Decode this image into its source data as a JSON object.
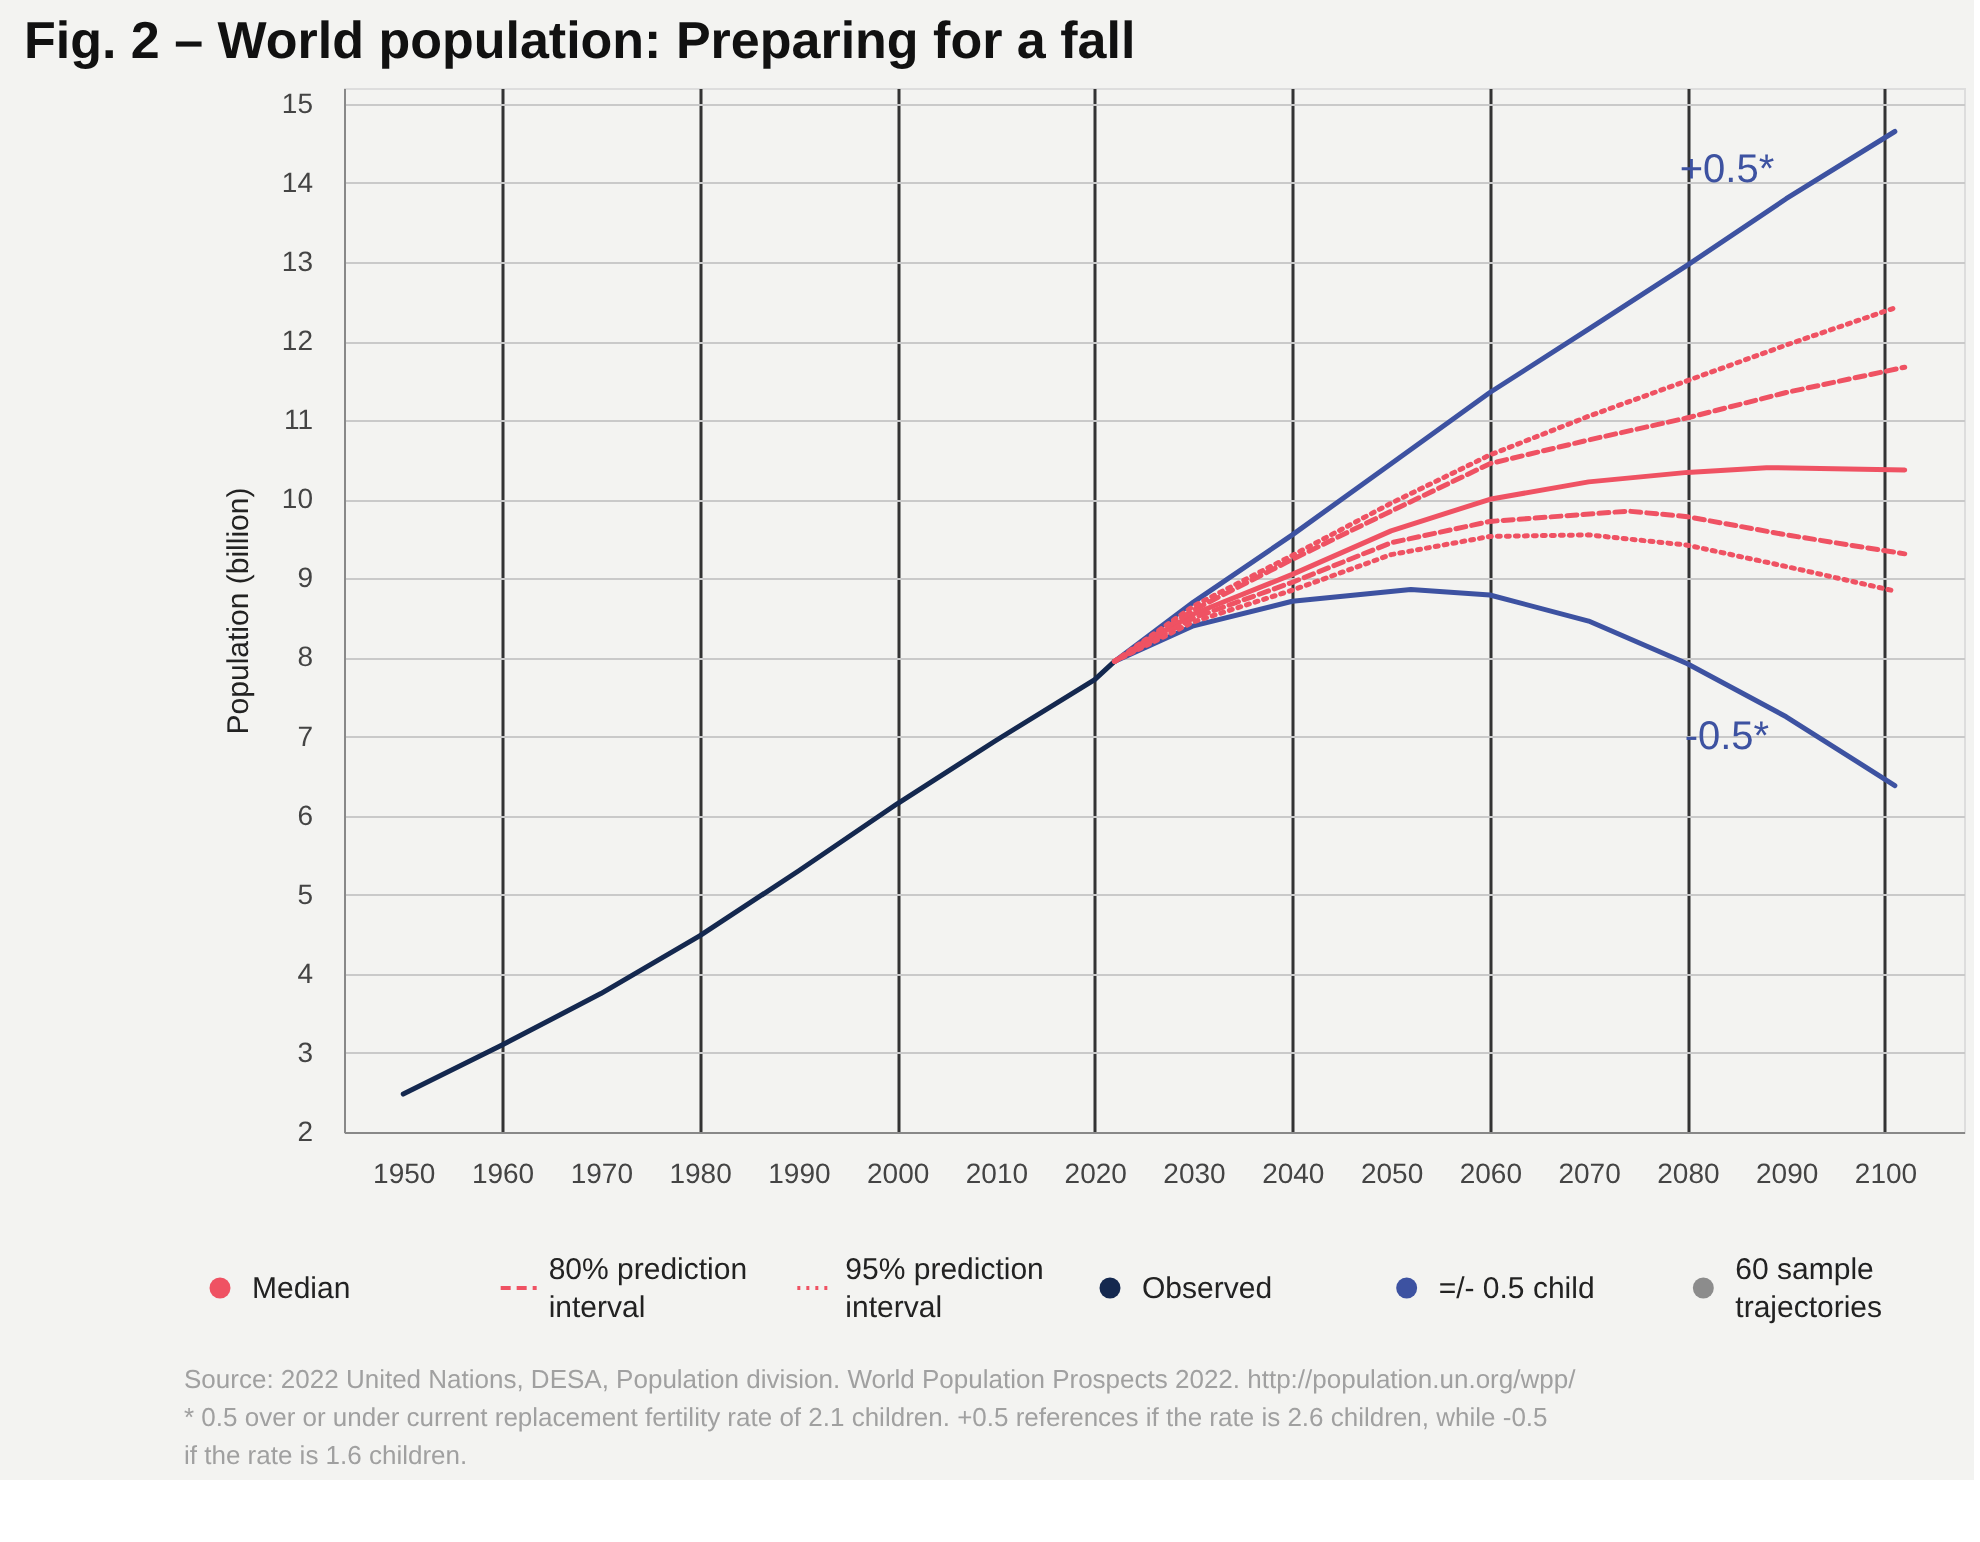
{
  "chart_data": {
    "type": "line",
    "title": "Fig. 2 – World population: Preparing for a fall",
    "ylabel": "Population (billion)",
    "xlim": [
      1944,
      2108
    ],
    "xticks": [
      1950,
      1960,
      1970,
      1980,
      1990,
      2000,
      2010,
      2020,
      2030,
      2040,
      2050,
      2060,
      2070,
      2080,
      2090,
      2100
    ],
    "ylim": [
      2,
      15.2
    ],
    "yticks": [
      2,
      3,
      4,
      5,
      6,
      7,
      8,
      9,
      10,
      11,
      12,
      13,
      14,
      15
    ],
    "grid": true,
    "legend": "bottom",
    "marker": "none",
    "series": [
      {
        "name": "Median",
        "color": "#ef5263",
        "line_style": "solid",
        "x": [
          2022,
          2030,
          2040,
          2050,
          2060,
          2070,
          2080,
          2088,
          2102
        ],
        "values": [
          7.95,
          8.55,
          9.05,
          9.6,
          10.0,
          10.22,
          10.34,
          10.4,
          10.37
        ]
      },
      {
        "name": "80% prediction interval",
        "color": "#ef5263",
        "line_style": "dashed",
        "x": [
          2022,
          2030,
          2040,
          2050,
          2060,
          2070,
          2080,
          2090,
          2102
        ],
        "values": [
          7.95,
          8.6,
          9.24,
          9.85,
          10.45,
          10.75,
          11.03,
          11.35,
          11.67
        ]
      },
      {
        "color": "#ef5263",
        "line_style": "dashed",
        "x": [
          2022,
          2030,
          2040,
          2050,
          2060,
          2074,
          2080,
          2090,
          2102
        ],
        "values": [
          7.95,
          8.5,
          8.95,
          9.45,
          9.72,
          9.85,
          9.78,
          9.55,
          9.31
        ]
      },
      {
        "name": "95% prediction interval",
        "color": "#ef5263",
        "line_style": "dotted",
        "x": [
          2022,
          2030,
          2040,
          2050,
          2060,
          2070,
          2080,
          2090,
          2101
        ],
        "values": [
          7.95,
          8.65,
          9.29,
          9.95,
          10.56,
          11.05,
          11.5,
          11.95,
          12.42
        ]
      },
      {
        "color": "#ef5263",
        "line_style": "dotted",
        "x": [
          2022,
          2030,
          2040,
          2050,
          2060,
          2070,
          2080,
          2090,
          2101
        ],
        "values": [
          7.95,
          8.45,
          8.85,
          9.3,
          9.53,
          9.55,
          9.42,
          9.15,
          8.84
        ]
      },
      {
        "name": "Observed",
        "color": "#14284f",
        "line_style": "solid",
        "x": [
          1950,
          1960,
          1970,
          1980,
          1990,
          2000,
          2010,
          2020,
          2022
        ],
        "values": [
          2.48,
          3.1,
          3.75,
          4.48,
          5.3,
          6.15,
          6.95,
          7.72,
          7.95
        ]
      },
      {
        "name": "=/- 0.5 child",
        "color": "#3d52a1",
        "line_style": "solid",
        "x": [
          2022,
          2030,
          2040,
          2050,
          2060,
          2070,
          2080,
          2090,
          2101
        ],
        "values": [
          7.95,
          8.7,
          9.55,
          10.45,
          11.35,
          12.15,
          12.96,
          13.8,
          14.65
        ]
      },
      {
        "color": "#3d52a1",
        "line_style": "solid",
        "x": [
          2022,
          2030,
          2040,
          2052,
          2060,
          2070,
          2080,
          2090,
          2101
        ],
        "values": [
          7.95,
          8.4,
          8.71,
          8.86,
          8.79,
          8.46,
          7.92,
          7.25,
          6.38
        ]
      },
      {
        "name": "60 sample trajectories",
        "color": "#8c8c8c",
        "line_style": "solid"
      }
    ],
    "annotations": [
      {
        "text": "+0.5*",
        "x": 2084,
        "y": 13.3
      },
      {
        "text": "-0.5*",
        "x": 2084,
        "y": 7.65
      },
      "Source: 2022 United Nations, DESA, Population division. World Population Prospects 2022. http://population.un.org/wpp/",
      "* 0.5 over or under current replacement fertility rate of 2.1 children. +0.5 references if the rate is 2.6 children, while -0.5 if the rate is 1.6 children."
    ]
  }
}
